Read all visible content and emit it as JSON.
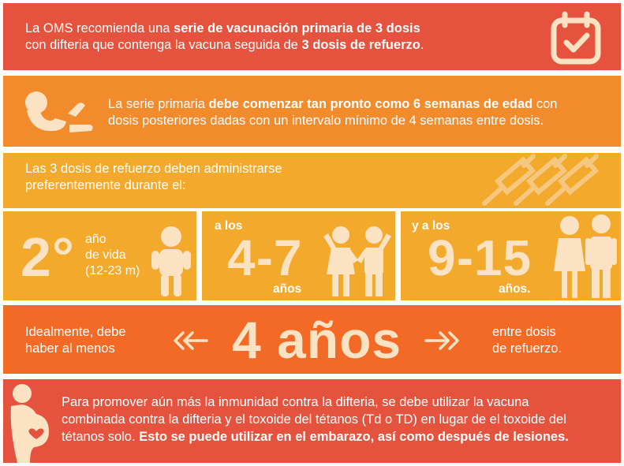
{
  "row1": {
    "p1": "La OMS recomienda una ",
    "b1": "serie de vacunación primaria de 3 dosis",
    "p2": "con difteria que contenga la vacuna seguida de ",
    "b2": "3 dosis de refuerzo",
    "p3": ".",
    "icon": "calendar-check-icon"
  },
  "row2": {
    "p1": "La serie primaria ",
    "b1": "debe comenzar tan pronto como 6 semanas de edad",
    "p2": " con",
    "p3": "dosis posteriores dadas con un intervalo mínimo de 4 semanas entre dosis.",
    "icon": "baby-icon"
  },
  "row3": {
    "line1": "Las 3 dosis de refuerzo deben administrarse",
    "line2": "preferentemente durante el:",
    "icon": "syringes-icon"
  },
  "row4": {
    "cell1": {
      "big": "2°",
      "l1": "año",
      "l2": "de vida",
      "l3": "(12-23 m)",
      "icon": "toddler-icon"
    },
    "cell2": {
      "top": "a los",
      "big": "4-7",
      "bottom": "años",
      "icon": "children-icon"
    },
    "cell3": {
      "top": "y a los",
      "big": "9-15",
      "bottom": "años.",
      "icon": "teens-icon"
    }
  },
  "row5": {
    "left1": "Idealmente, debe",
    "left2": "haber al menos",
    "big": "4 años",
    "right1": "entre dosis",
    "right2": "de refuerzo.",
    "left_arrow": "double-chevron-left-icon",
    "right_arrow": "double-chevron-right-icon"
  },
  "row6": {
    "line1": "Para promover aún más la inmunidad contra la difteria, se debe utilizar la vacuna",
    "line2": "combinada contra la difteria y el toxoide del tétanos (Td o TD) en lugar de el toxoide del",
    "line3a": "tétanos solo. ",
    "line3b": "Esto se puede utilizar en el embarazo, así como después de lesiones.",
    "icon": "pregnant-woman-icon"
  },
  "colors": {
    "red": "#E5533E",
    "orange": "#F28B2C",
    "yellow": "#F2A92C",
    "deep_orange": "#F26A25",
    "accent": "#FBE2C3"
  }
}
